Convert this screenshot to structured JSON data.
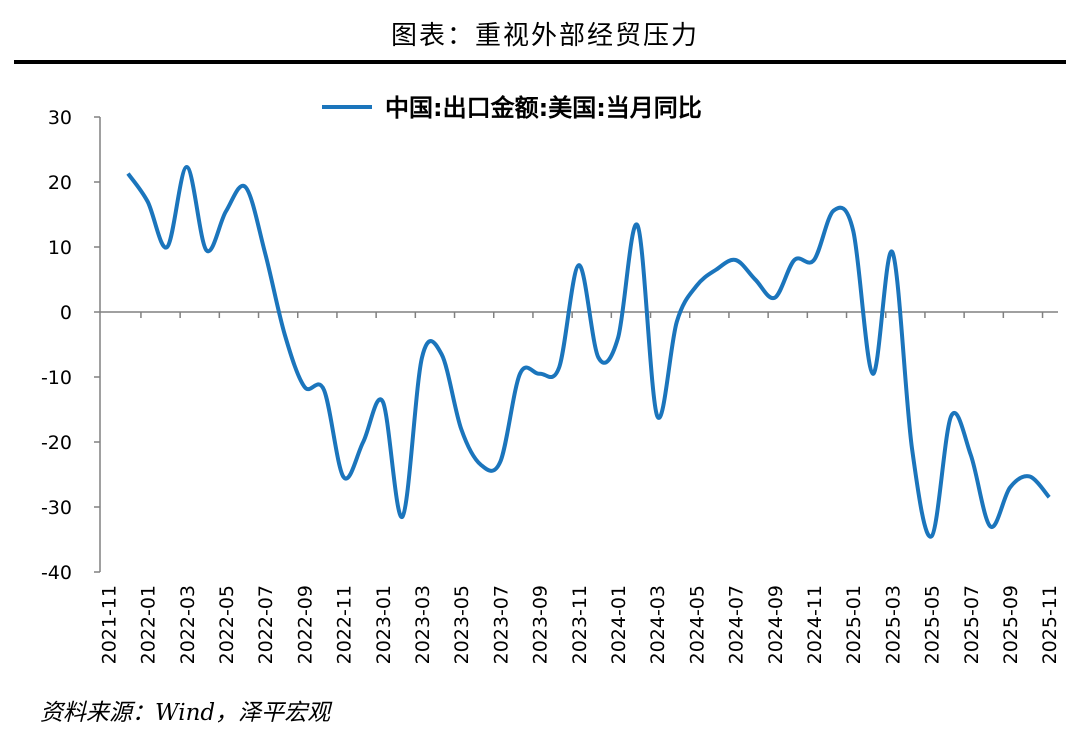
{
  "title": "图表：重视外部经贸压力",
  "source": "资料来源：Wind，泽平宏观",
  "chart_data": {
    "type": "line",
    "categories": [
      "2021-11",
      null,
      "2022-01",
      null,
      "2022-03",
      null,
      "2022-05",
      null,
      "2022-07",
      null,
      "2022-09",
      null,
      "2022-11",
      null,
      "2023-01",
      null,
      "2023-03",
      null,
      "2023-05",
      null,
      "2023-07",
      null,
      "2023-09",
      null,
      "2023-11",
      null,
      "2024-01",
      null,
      "2024-03",
      null,
      "2024-05",
      null,
      "2024-07",
      null,
      "2024-09",
      null,
      "2024-11",
      null,
      "2025-01",
      null,
      "2025-03",
      null,
      "2025-05",
      null,
      "2025-07",
      null,
      "2025-09",
      null,
      "2025-11"
    ],
    "series": [
      {
        "name": "中国:出口金额:美国:当月同比",
        "color": "#1b75bc",
        "values": [
          null,
          21.3,
          17,
          10,
          22.3,
          9.5,
          15.5,
          19.2,
          9,
          -3.5,
          -11.5,
          -12,
          -25.4,
          -20,
          -13.8,
          -31.5,
          -7,
          -6.5,
          -18,
          -23.5,
          -23,
          -9.5,
          -9.5,
          -8.5,
          7.2,
          -7,
          -4,
          13.3,
          -16,
          -1.5,
          4,
          6.5,
          8,
          5,
          2.2,
          8,
          8,
          15.6,
          12.5,
          -9.5,
          9.2,
          -21,
          -34.5,
          -16,
          -22,
          -33,
          -27,
          -25.3,
          -28.5
        ]
      }
    ],
    "ylim": [
      -40,
      30
    ],
    "yticks": [
      -40,
      -30,
      -20,
      -10,
      0,
      10,
      20,
      30
    ],
    "grid": false,
    "legend": "top"
  }
}
